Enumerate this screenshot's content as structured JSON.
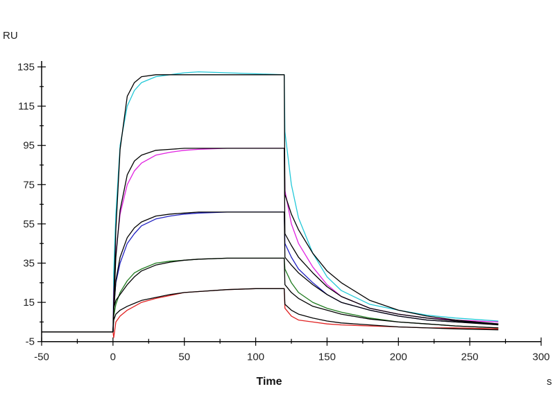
{
  "chart_data": {
    "type": "line",
    "title": "",
    "xlabel": "Time",
    "x_unit": "s",
    "y_unit": "RU",
    "xlim": [
      -50,
      300
    ],
    "ylim": [
      -5,
      135
    ],
    "x_ticks": [
      "-50",
      "0",
      "50",
      "100",
      "150",
      "200",
      "250",
      "300"
    ],
    "y_ticks": [
      "-5",
      "15",
      "35",
      "55",
      "75",
      "95",
      "115",
      "135"
    ],
    "grid": false,
    "legend": "none",
    "x": [
      -50,
      0,
      0.5,
      2,
      5,
      10,
      15,
      20,
      30,
      40,
      50,
      60,
      80,
      100,
      120,
      120.5,
      125,
      130,
      140,
      150,
      160,
      180,
      200,
      220,
      240,
      270
    ],
    "series": [
      {
        "role": "data",
        "color": "#22c8d8",
        "values": [
          0,
          0,
          30,
          60,
          95,
          115,
          123,
          127,
          130,
          131,
          132,
          132.5,
          132,
          131.5,
          131,
          102,
          75,
          58,
          40,
          28,
          21,
          14,
          11,
          8.5,
          7,
          5.5
        ]
      },
      {
        "role": "data",
        "color": "#e020e0",
        "values": [
          0,
          0,
          20,
          40,
          60,
          75,
          82,
          86,
          90,
          91.5,
          92.5,
          93,
          93.5,
          93.5,
          93.5,
          72,
          55,
          45,
          33,
          24,
          18,
          12,
          9,
          7,
          6,
          5
        ]
      },
      {
        "role": "data",
        "color": "#2020c0",
        "values": [
          0,
          0,
          12,
          25,
          35,
          45,
          50,
          54,
          57.5,
          59,
          60,
          60.5,
          61,
          61,
          61,
          45,
          38,
          32,
          25,
          19,
          15,
          11,
          8,
          6,
          5,
          4
        ]
      },
      {
        "role": "data",
        "color": "#1f7a1f",
        "values": [
          0,
          0,
          8,
          14,
          20,
          26,
          30,
          32,
          35,
          36,
          36.5,
          37,
          37.5,
          37.5,
          37.5,
          32,
          25,
          20,
          15,
          12,
          10,
          7,
          5,
          4,
          3,
          2
        ]
      },
      {
        "role": "data",
        "color": "#e02020",
        "values": [
          0,
          0,
          -3,
          5,
          8,
          11,
          13,
          15,
          17,
          18.5,
          20,
          20.5,
          21.5,
          22,
          22,
          12,
          8,
          6,
          5,
          4,
          3.5,
          3,
          2.5,
          2,
          2,
          1.5
        ]
      },
      {
        "role": "fit",
        "color": "#000000",
        "values": [
          0,
          0,
          15,
          52,
          93,
          120,
          127,
          130,
          131,
          131,
          131,
          131,
          131,
          131,
          131,
          70,
          60,
          52,
          40,
          31,
          25,
          16,
          11,
          8,
          6,
          4
        ]
      },
      {
        "role": "fit",
        "color": "#000000",
        "values": [
          0,
          0,
          12,
          38,
          62,
          80,
          87,
          90,
          92.5,
          93,
          93.5,
          93.5,
          93.5,
          93.5,
          93.5,
          50,
          44,
          38,
          30,
          23,
          18,
          12,
          9,
          7,
          5.5,
          4
        ]
      },
      {
        "role": "fit",
        "color": "#000000",
        "values": [
          0,
          0,
          10,
          26,
          38,
          48,
          53,
          56,
          59,
          60,
          60.5,
          61,
          61,
          61,
          61,
          38,
          34,
          30,
          24,
          19,
          15,
          11,
          8,
          6,
          5,
          3.5
        ]
      },
      {
        "role": "fit",
        "color": "#000000",
        "values": [
          0,
          0,
          12,
          16,
          19,
          24,
          28,
          31,
          34,
          35.5,
          36.5,
          37,
          37.5,
          37.5,
          37.5,
          24,
          20,
          17,
          13,
          11,
          9,
          6.5,
          5,
          4,
          3,
          2
        ]
      },
      {
        "role": "fit",
        "color": "#000000",
        "values": [
          0,
          0,
          6,
          9,
          11,
          13,
          14.5,
          16,
          17.5,
          19,
          20,
          20.5,
          21.5,
          22,
          22,
          14,
          11,
          9,
          7,
          5.5,
          4.5,
          3.5,
          2.5,
          2,
          1.5,
          1
        ]
      }
    ]
  }
}
